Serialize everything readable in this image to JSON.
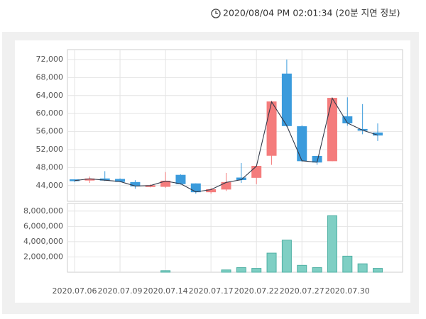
{
  "timestamp": "2020/08/04 PM 02:01:34 (20분 지연 정보)",
  "chart_data": [
    {
      "type": "candlestick",
      "open": [
        45300,
        45200,
        45500,
        45400,
        44700,
        43800,
        43800,
        46300,
        44400,
        42600,
        43200,
        45700,
        45800,
        50700,
        68800,
        57100,
        50500,
        49500,
        59300,
        56500,
        55700
      ],
      "high": [
        45400,
        46000,
        47200,
        45600,
        45200,
        44300,
        47000,
        46500,
        44500,
        43500,
        46800,
        49000,
        48300,
        62800,
        72000,
        57400,
        50600,
        63600,
        63600,
        62100,
        57800
      ],
      "low": [
        44800,
        44600,
        45000,
        44800,
        43300,
        43600,
        43500,
        44200,
        42200,
        42200,
        42800,
        44600,
        44300,
        48600,
        57000,
        49300,
        48600,
        49400,
        57300,
        55400,
        53900
      ],
      "close": [
        45100,
        45500,
        45200,
        44900,
        43900,
        44000,
        45000,
        44400,
        42600,
        43100,
        44700,
        45300,
        48300,
        62600,
        57300,
        49500,
        49200,
        63400,
        57900,
        56300,
        55200
      ],
      "up_color": "#f47c7c",
      "down_color": "#3b9bdc",
      "line_color": "#333a4a",
      "ylim": [
        40500,
        74200
      ],
      "yticks": [
        {
          "value": 44000,
          "label": "44,000"
        },
        {
          "value": 48000,
          "label": "48,000"
        },
        {
          "value": 52000,
          "label": "52,000"
        },
        {
          "value": 56000,
          "label": "56,000"
        },
        {
          "value": 60000,
          "label": "60,000"
        },
        {
          "value": 64000,
          "label": "64,000"
        },
        {
          "value": 68000,
          "label": "68,000"
        },
        {
          "value": 72000,
          "label": "72,000"
        }
      ],
      "grid": true
    },
    {
      "type": "bar",
      "categories": [
        "2020.07.06",
        null,
        null,
        "2020.07.09",
        null,
        null,
        "2020.07.14",
        null,
        null,
        "2020.07.17",
        null,
        null,
        "2020.07.22",
        null,
        null,
        "2020.07.27",
        null,
        null,
        "2020.07.30",
        null,
        null
      ],
      "values": [
        0,
        0,
        0,
        0,
        0,
        0,
        200000,
        0,
        0,
        0,
        300000,
        600000,
        500000,
        2500000,
        4200000,
        900000,
        600000,
        7400000,
        2100000,
        1100000,
        500000
      ],
      "color": "#7fcfc4",
      "ylim": [
        0,
        9000000
      ],
      "yticks": [
        {
          "value": 2000000,
          "label": "2,000,000"
        },
        {
          "value": 4000000,
          "label": "4,000,000"
        },
        {
          "value": 6000000,
          "label": "6,000,000"
        },
        {
          "value": 8000000,
          "label": "8,000,000"
        }
      ],
      "grid": true
    }
  ]
}
